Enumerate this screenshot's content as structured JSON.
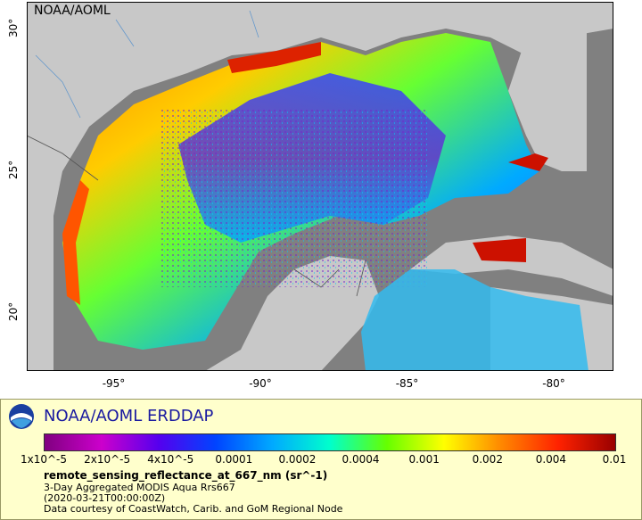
{
  "map": {
    "label": "NOAA/AOML",
    "lat_ticks": [
      {
        "value": 30,
        "label": "30°"
      },
      {
        "value": 25,
        "label": "25°"
      },
      {
        "value": 20,
        "label": "20°"
      }
    ],
    "lon_ticks": [
      {
        "value": -95,
        "label": "-95°"
      },
      {
        "value": -90,
        "label": "-90°"
      },
      {
        "value": -85,
        "label": "-85°"
      },
      {
        "value": -80,
        "label": "-80°"
      }
    ],
    "lon_range": [
      -98,
      -78
    ],
    "lat_range": [
      18,
      31
    ],
    "colors": {
      "land": "#c8c8c8",
      "nodata": "#808080",
      "border": "#555555",
      "river": "#6699cc"
    }
  },
  "legend": {
    "title": "NOAA/AOML ERDDAP",
    "colorbar_ticks": [
      "1x10^-5",
      "2x10^-5",
      "4x10^-5",
      "0.0001",
      "0.0002",
      "0.0004",
      "0.001",
      "0.002",
      "0.004",
      "0.01"
    ],
    "colorbar_colors": [
      "#800080",
      "#cc00cc",
      "#5500ee",
      "#0044ff",
      "#00aaff",
      "#00ffcc",
      "#66ff00",
      "#ffff00",
      "#ff8800",
      "#ff2200",
      "#990000"
    ],
    "variable": "remote_sensing_reflectance_at_667_nm (sr^-1)",
    "lines": [
      "3-Day Aggregated MODIS Aqua Rrs667",
      "(2020-03-21T00:00:00Z)",
      "Data courtesy of CoastWatch, Carib. and GoM Regional Node"
    ]
  }
}
